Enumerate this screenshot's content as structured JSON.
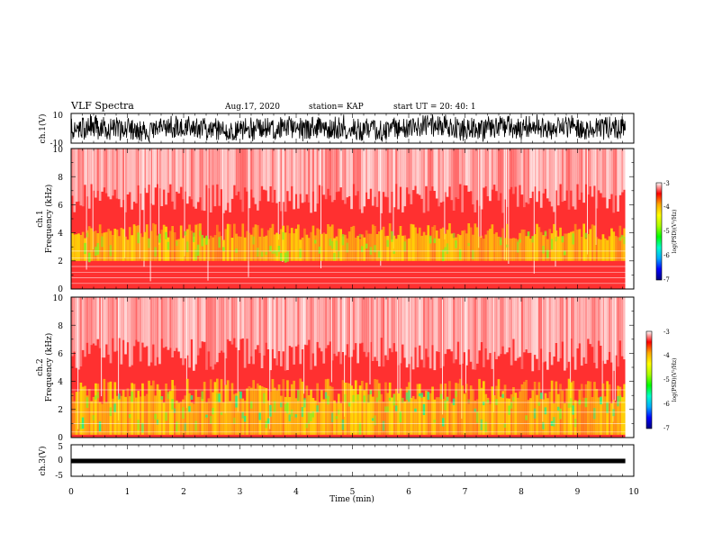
{
  "header": {
    "title": "VLF Spectra",
    "date": "Aug.17, 2020",
    "station": "station= KAP",
    "start_ut": "start  UT  =   20: 40: 1"
  },
  "colors": {
    "spectrogram_base": "#ff3030",
    "spectrogram_bright": "#ffffff",
    "waveform": "#000000"
  },
  "chart_data": [
    {
      "type": "line",
      "name": "ch.1 waveform",
      "ylabel": "ch.1(V)",
      "ylim": [
        -10,
        10
      ],
      "yticks": [
        "10",
        "-10"
      ],
      "xlim": [
        0,
        10
      ],
      "x_unit": "min"
    },
    {
      "type": "heatmap",
      "name": "ch.1 spectrogram",
      "ylabel_lines": [
        "ch.1",
        "Frequency  (kHz)"
      ],
      "ylim": [
        0,
        10
      ],
      "yticks": [
        "0",
        "2",
        "4",
        "6",
        "8",
        "10"
      ],
      "xlim": [
        0,
        10
      ],
      "colorbar": {
        "label": "log(PSD)(V²/Hz)",
        "range": [
          -7,
          -3
        ],
        "ticks": [
          "-3",
          "-4",
          "-5",
          "-6",
          "-7"
        ],
        "colormap": [
          "#000080",
          "#0000ff",
          "#00aaff",
          "#00ffcc",
          "#00ff00",
          "#aaff00",
          "#ffff00",
          "#ffaa00",
          "#ff0000",
          "#ffffff"
        ]
      }
    },
    {
      "type": "heatmap",
      "name": "ch.2 spectrogram",
      "ylabel_lines": [
        "ch.2",
        "Frequency  (kHz)"
      ],
      "ylim": [
        0,
        10
      ],
      "yticks": [
        "0",
        "2",
        "4",
        "6",
        "8",
        "10"
      ],
      "xlim": [
        0,
        10
      ],
      "colorbar": {
        "label": "log(PSD)(V²/Hz)",
        "range": [
          -7,
          -3
        ],
        "ticks": [
          "-3",
          "-4",
          "-5",
          "-6",
          "-7"
        ],
        "colormap": [
          "#000080",
          "#0000ff",
          "#00aaff",
          "#00ffcc",
          "#00ff00",
          "#aaff00",
          "#ffff00",
          "#ffaa00",
          "#ff0000",
          "#ffffff"
        ]
      }
    },
    {
      "type": "line",
      "name": "ch.3 waveform",
      "ylabel": "ch.3(V)",
      "ylim": [
        -5,
        5
      ],
      "yticks": [
        "5",
        "0",
        "-5"
      ],
      "xlim": [
        0,
        10
      ],
      "xlabel": "Time  (min)",
      "xticks": [
        "0",
        "1",
        "2",
        "3",
        "4",
        "5",
        "6",
        "7",
        "8",
        "9",
        "10"
      ]
    }
  ]
}
